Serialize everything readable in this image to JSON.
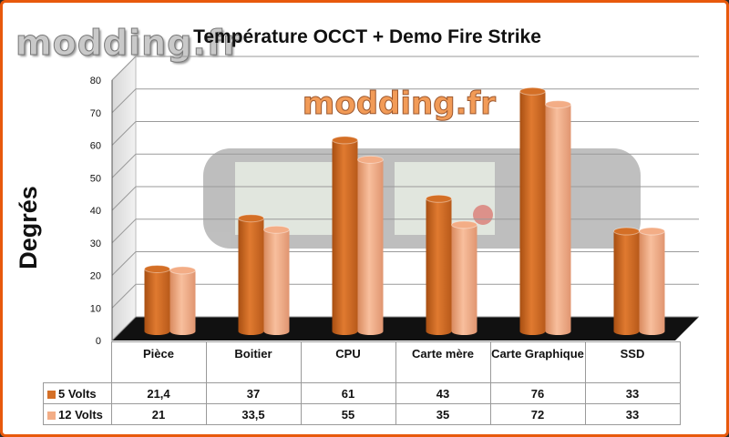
{
  "watermark": {
    "top_text": "modding.fr",
    "center_text": "modding.fr"
  },
  "chart_data": {
    "type": "bar",
    "title": "Température OCCT + Demo Fire Strike",
    "ylabel": "Degrés",
    "xlabel": "",
    "ylim": [
      0,
      80
    ],
    "yticks": [
      0,
      10,
      20,
      30,
      40,
      50,
      60,
      70,
      80
    ],
    "yticks_labels": [
      "0",
      "10",
      "20",
      "30",
      "40",
      "50",
      "60",
      "70",
      "80"
    ],
    "categories": [
      "Pièce",
      "Boitier",
      "CPU",
      "Carte mère",
      "Carte Graphique",
      "SSD"
    ],
    "grid": true,
    "legend": "table-below",
    "series": [
      {
        "name": "5 Volts",
        "values": [
          21.4,
          37,
          61,
          43,
          76,
          33
        ],
        "labels": [
          "21,4",
          "37",
          "61",
          "43",
          "76",
          "33"
        ],
        "color": "#d46f26"
      },
      {
        "name": "12 Volts",
        "values": [
          21,
          33.5,
          55,
          35,
          72,
          33
        ],
        "labels": [
          "21",
          "33,5",
          "55",
          "35",
          "72",
          "33"
        ],
        "color": "#f3ad86"
      }
    ]
  }
}
